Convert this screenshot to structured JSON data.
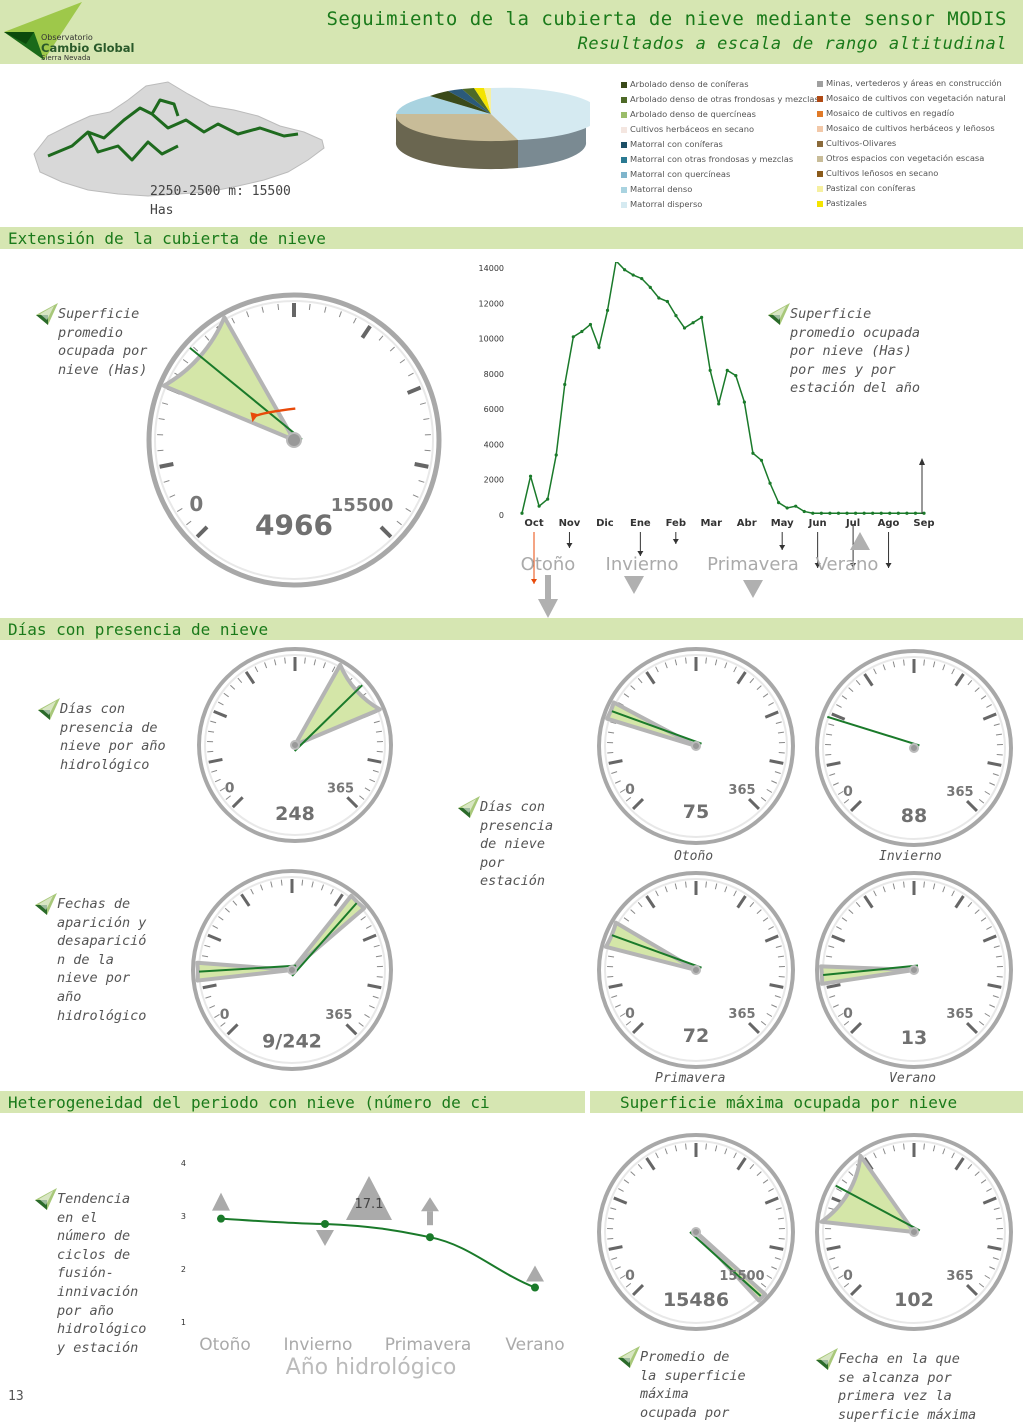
{
  "header": {
    "title": "Seguimiento de la cubierta de nieve mediante sensor MODIS",
    "subtitle": "Resultados a escala de rango altitudinal",
    "logo_line1": "Observatorio",
    "logo_line2": "Cambio Global",
    "logo_line3": "Sierra Nevada"
  },
  "map": {
    "label_line1": "2250-2500 m: 15500",
    "label_line2": "Has"
  },
  "legend": {
    "col1": [
      {
        "label": "Arbolado denso de coníferas",
        "color": "#3a4a1a"
      },
      {
        "label": "Arbolado denso de otras frondosas y mezclas",
        "color": "#4e6a28"
      },
      {
        "label": "Arbolado denso de quercíneas",
        "color": "#9bbd6a"
      },
      {
        "label": "Cultivos herbáceos en secano",
        "color": "#f4e6e0"
      },
      {
        "label": "Matorral con coníferas",
        "color": "#1d4f66"
      },
      {
        "label": "Matorral con otras frondosas y mezclas",
        "color": "#2b7a92"
      },
      {
        "label": "Matorral con quercíneas",
        "color": "#7fb5cc"
      },
      {
        "label": "Matorral denso",
        "color": "#a9d3e0"
      },
      {
        "label": "Matorral disperso",
        "color": "#d5eaf1"
      }
    ],
    "col2": [
      {
        "label": "Minas, vertederos y áreas en construcción",
        "color": "#a0a0a0"
      },
      {
        "label": "Mosaico de cultivos con vegetación natural",
        "color": "#b04a14"
      },
      {
        "label": "Mosaico de cultivos en regadío",
        "color": "#e07a28"
      },
      {
        "label": "Mosaico de cultivos herbáceos y leñosos",
        "color": "#f2c8a8"
      },
      {
        "label": "Cultivos-Olivares",
        "color": "#8a6a3a"
      },
      {
        "label": "Otros espacios con vegetación escasa",
        "color": "#c8bc98"
      },
      {
        "label": "Cultivos leñosos en secano",
        "color": "#8a5a1a"
      },
      {
        "label": "Pastizal con coníferas",
        "color": "#f6f0a0"
      },
      {
        "label": "Pastizales",
        "color": "#f4e400"
      }
    ]
  },
  "sections": {
    "extension": "Extensión de la cubierta de nieve",
    "dias": "Días con presencia de nieve",
    "heterogeneidad": "Heterogeneidad del periodo con nieve (número de ci",
    "superficie_max": "Superficie máxima ocupada por nieve"
  },
  "notes": {
    "superficie_promedio": [
      "Superficie",
      "promedio",
      "ocupada por",
      "nieve (Has)"
    ],
    "superficie_mes": [
      "Superficie",
      "promedio ocupada",
      "por nieve (Has)",
      "por mes y por",
      "estación del año"
    ],
    "dias_ano": [
      "Días con",
      "presencia de",
      "nieve por año",
      "hidrológico"
    ],
    "dias_estacion": [
      "Días con",
      "presencia",
      "de nieve",
      "por",
      "estación"
    ],
    "fechas": [
      "Fechas de",
      "aparición y",
      "desaparició",
      "n de la",
      "nieve por",
      "año",
      "hidrológico"
    ],
    "tendencia": [
      "Tendencia",
      "en el",
      "número de",
      "ciclos de",
      "fusión-",
      "innivación",
      "por año",
      "hidrológico",
      "y estación"
    ],
    "promedio_max": [
      "Promedio de",
      "la superficie",
      "máxima",
      "ocupada por"
    ],
    "fecha_max": [
      "Fecha en la que",
      "se alcanza por",
      "primera vez la",
      "superficie máxima"
    ]
  },
  "gauges": {
    "extension": {
      "min": "0",
      "max": "15500",
      "value": "4966"
    },
    "dias_ano": {
      "min": "0",
      "max": "365",
      "value": "248"
    },
    "fechas": {
      "min": "0",
      "max": "365",
      "value": "9/242"
    },
    "otono": {
      "min": "0",
      "max": "365",
      "value": "75",
      "label": "Otoño"
    },
    "invierno": {
      "min": "0",
      "max": "365",
      "value": "88",
      "label": "Invierno"
    },
    "primavera": {
      "min": "0",
      "max": "365",
      "value": "72",
      "label": "Primavera"
    },
    "verano": {
      "min": "0",
      "max": "365",
      "value": "13",
      "label": "Verano"
    },
    "sup_max": {
      "min": "0",
      "max": "15500",
      "value": "15486"
    },
    "fecha_max": {
      "min": "0",
      "max": "365",
      "value": "102"
    }
  },
  "chart_data": [
    {
      "type": "line",
      "title": "",
      "xlabel": "",
      "ylabel": "",
      "x_ticks": [
        "Oct",
        "Nov",
        "Dic",
        "Ene",
        "Feb",
        "Mar",
        "Abr",
        "May",
        "Jun",
        "Jul",
        "Ago",
        "Sep"
      ],
      "y_ticks": [
        "0",
        "2000",
        "4000",
        "6000",
        "8000",
        "10000",
        "12000",
        "14000"
      ],
      "ylim": [
        0,
        14000
      ],
      "seasons": [
        "Otoño",
        "Invierno",
        "Primavera",
        "Verano"
      ],
      "series": [
        {
          "values": [
            100,
            2200,
            500,
            900,
            3400,
            7400,
            10100,
            10400,
            10800,
            9500,
            11600,
            14400,
            13900,
            13600,
            13400,
            12900,
            12300,
            12100,
            11300,
            10600,
            10900,
            11200,
            8200,
            6300,
            8200,
            7900,
            6400,
            3500,
            3100,
            1800,
            700,
            400,
            500,
            200,
            100,
            100,
            100,
            100,
            100,
            100,
            100,
            100,
            100,
            100,
            100,
            100,
            100,
            100
          ]
        }
      ]
    },
    {
      "type": "line",
      "title": "",
      "xlabel": "Año hidrológico",
      "ylabel": "",
      "categories": [
        "Otoño",
        "Invierno",
        "Primavera",
        "Verano"
      ],
      "y_ticks": [
        "1",
        "2",
        "3",
        "4"
      ],
      "ylim": [
        1,
        4
      ],
      "annotation": "17.1",
      "series": [
        {
          "values": [
            2.95,
            2.85,
            2.6,
            1.65
          ]
        }
      ]
    }
  ],
  "page_number": "13"
}
